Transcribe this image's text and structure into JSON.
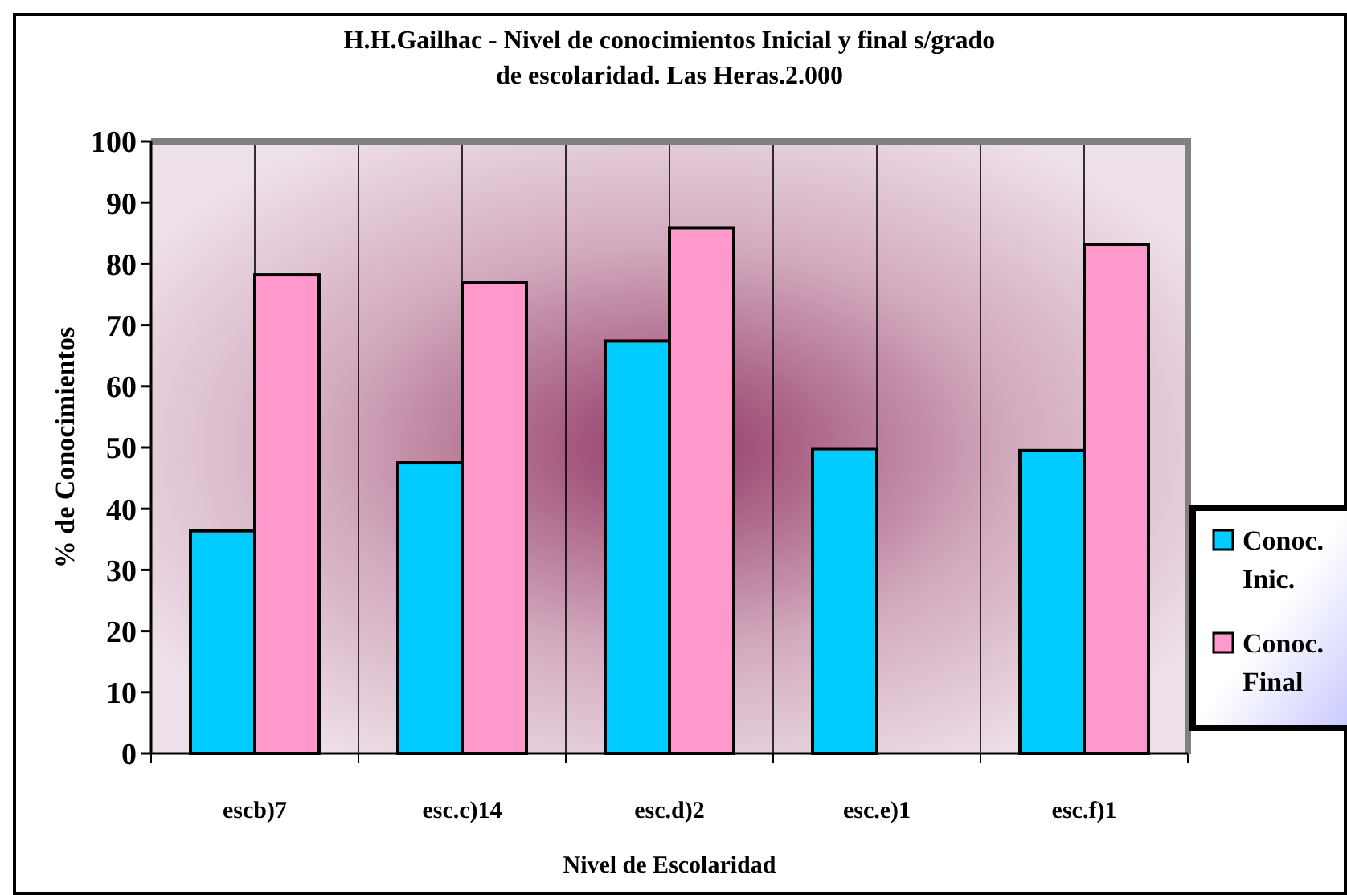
{
  "chart_data": {
    "type": "bar",
    "title": "H.H.Gailhac - Nivel de conocimientos Inicial y final s/grado de escolaridad. Las Heras.2.000",
    "xlabel": "Nivel de Escolaridad",
    "ylabel": "% de Conocimientos",
    "categories": [
      "escb)7",
      "esc.c)14",
      "esc.d)2",
      "esc.e)1",
      "esc.f)1"
    ],
    "series": [
      {
        "name": "Conoc. Inic.",
        "color": "#00ccff",
        "values": [
          36.4,
          47.5,
          67.4,
          49.8,
          49.5
        ]
      },
      {
        "name": "Conoc. Final",
        "color": "#ff99cc",
        "values": [
          78.2,
          76.9,
          85.9,
          null,
          83.2
        ]
      }
    ],
    "ylim": [
      0,
      100
    ],
    "yticks": [
      0,
      10,
      20,
      30,
      40,
      50,
      60,
      70,
      80,
      90,
      100
    ],
    "grid": "x",
    "legend": "right"
  }
}
